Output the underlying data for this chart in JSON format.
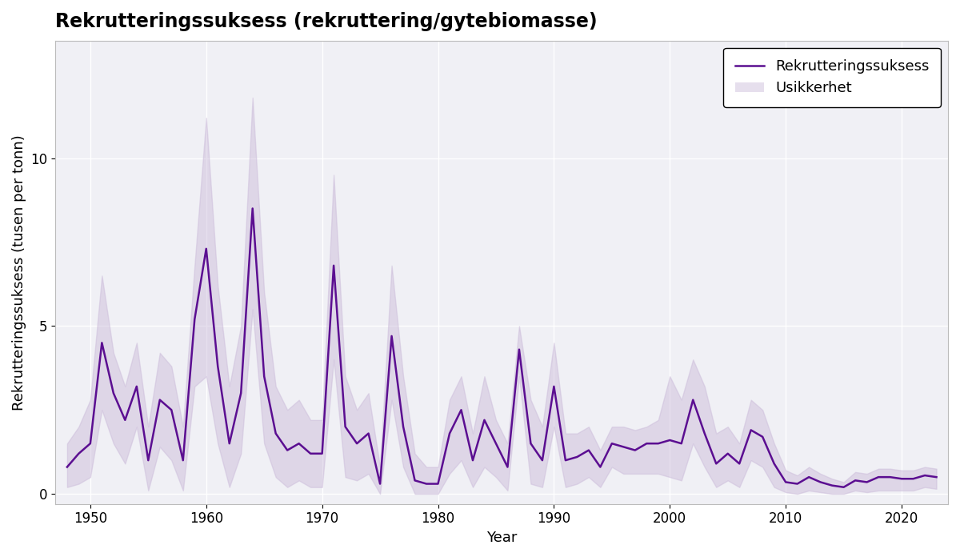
{
  "title": "Rekrutteringssuksess (rekruttering/gytebiomasse)",
  "xlabel": "Year",
  "ylabel": "Rekrutteringssuksess (tusen per tonn)",
  "line_color": "#5B0E91",
  "fill_color": "#C9B8D8",
  "fill_alpha": 0.45,
  "line_width": 1.8,
  "legend_line": "Rekrutteringssuksess",
  "legend_fill": "Usikkerhet",
  "xlim": [
    1947,
    2024
  ],
  "ylim": [
    -0.3,
    13.5
  ],
  "yticks": [
    0,
    5,
    10
  ],
  "xticks": [
    1950,
    1960,
    1970,
    1980,
    1990,
    2000,
    2010,
    2020
  ],
  "years": [
    1948,
    1949,
    1950,
    1951,
    1952,
    1953,
    1954,
    1955,
    1956,
    1957,
    1958,
    1959,
    1960,
    1961,
    1962,
    1963,
    1964,
    1965,
    1966,
    1967,
    1968,
    1969,
    1970,
    1971,
    1972,
    1973,
    1974,
    1975,
    1976,
    1977,
    1978,
    1979,
    1980,
    1981,
    1982,
    1983,
    1984,
    1985,
    1986,
    1987,
    1988,
    1989,
    1990,
    1991,
    1992,
    1993,
    1994,
    1995,
    1996,
    1997,
    1998,
    1999,
    2000,
    2001,
    2002,
    2003,
    2004,
    2005,
    2006,
    2007,
    2008,
    2009,
    2010,
    2011,
    2012,
    2013,
    2014,
    2015,
    2016,
    2017,
    2018,
    2019,
    2020,
    2021,
    2022,
    2023
  ],
  "values": [
    0.8,
    1.2,
    1.5,
    4.5,
    3.0,
    2.2,
    3.2,
    1.0,
    2.8,
    2.5,
    1.0,
    5.2,
    7.3,
    3.8,
    1.5,
    3.0,
    8.5,
    3.5,
    1.8,
    1.3,
    1.5,
    1.2,
    1.2,
    6.8,
    2.0,
    1.5,
    1.8,
    0.3,
    4.7,
    2.0,
    0.4,
    0.3,
    0.3,
    1.8,
    2.5,
    1.0,
    2.2,
    1.5,
    0.8,
    4.3,
    1.5,
    1.0,
    3.2,
    1.0,
    1.1,
    1.3,
    0.8,
    1.5,
    1.4,
    1.3,
    1.5,
    1.5,
    1.6,
    1.5,
    2.8,
    1.8,
    0.9,
    1.2,
    0.9,
    1.9,
    1.7,
    0.9,
    0.35,
    0.3,
    0.5,
    0.35,
    0.25,
    0.2,
    0.4,
    0.35,
    0.5,
    0.5,
    0.45,
    0.45,
    0.55,
    0.5
  ],
  "upper": [
    1.5,
    2.0,
    2.8,
    6.5,
    4.2,
    3.2,
    4.5,
    2.0,
    4.2,
    3.8,
    2.0,
    6.8,
    11.2,
    6.2,
    3.2,
    5.0,
    11.8,
    6.0,
    3.2,
    2.5,
    2.8,
    2.2,
    2.2,
    9.5,
    3.5,
    2.5,
    3.0,
    0.8,
    6.8,
    3.5,
    1.2,
    0.8,
    0.8,
    2.8,
    3.5,
    1.8,
    3.5,
    2.2,
    1.5,
    5.0,
    2.8,
    2.0,
    4.5,
    1.8,
    1.8,
    2.0,
    1.3,
    2.0,
    2.0,
    1.9,
    2.0,
    2.2,
    3.5,
    2.8,
    4.0,
    3.2,
    1.8,
    2.0,
    1.5,
    2.8,
    2.5,
    1.5,
    0.7,
    0.55,
    0.8,
    0.6,
    0.45,
    0.35,
    0.65,
    0.6,
    0.75,
    0.75,
    0.7,
    0.7,
    0.8,
    0.75
  ],
  "lower": [
    0.2,
    0.3,
    0.5,
    2.5,
    1.5,
    0.9,
    2.0,
    0.1,
    1.4,
    1.0,
    0.1,
    3.2,
    3.5,
    1.5,
    0.2,
    1.2,
    5.5,
    1.5,
    0.5,
    0.2,
    0.4,
    0.2,
    0.2,
    4.0,
    0.5,
    0.4,
    0.6,
    0.0,
    2.8,
    0.8,
    0.0,
    0.0,
    0.0,
    0.6,
    1.0,
    0.2,
    0.8,
    0.5,
    0.1,
    3.5,
    0.3,
    0.2,
    2.0,
    0.2,
    0.3,
    0.5,
    0.2,
    0.8,
    0.6,
    0.6,
    0.6,
    0.6,
    0.5,
    0.4,
    1.5,
    0.8,
    0.2,
    0.4,
    0.2,
    1.0,
    0.8,
    0.2,
    0.05,
    0.0,
    0.1,
    0.05,
    0.0,
    0.0,
    0.1,
    0.05,
    0.1,
    0.1,
    0.1,
    0.1,
    0.2,
    0.15
  ],
  "background_color": "#f5f5f8",
  "plot_background": "#f0f0f5",
  "title_fontsize": 17,
  "label_fontsize": 13,
  "tick_fontsize": 12
}
